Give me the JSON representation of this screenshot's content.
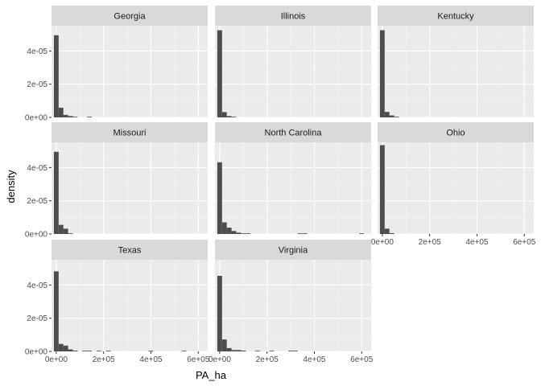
{
  "chart_data": {
    "type": "bar",
    "subtype": "faceted-histogram",
    "xlabel": "PA_ha",
    "ylabel": "density",
    "xlim": [
      -20000,
      640000
    ],
    "ylim": [
      0,
      5.52e-05
    ],
    "x_ticks": [
      0,
      200000,
      400000,
      600000
    ],
    "x_tick_labels": [
      "0e+00",
      "2e+05",
      "4e+05",
      "6e+05"
    ],
    "y_ticks": [
      0,
      2e-05,
      4e-05
    ],
    "y_tick_labels": [
      "0e+00",
      "2e-05",
      "4e-05"
    ],
    "bin_width": 20000,
    "grid": true,
    "panels": [
      {
        "name": "Georgia",
        "bins": [
          {
            "x": 0,
            "y": 4.95e-05
          },
          {
            "x": 20000,
            "y": 5.8e-06
          },
          {
            "x": 40000,
            "y": 1.5e-06
          },
          {
            "x": 60000,
            "y": 8e-07
          },
          {
            "x": 80000,
            "y": 3e-07
          },
          {
            "x": 140000,
            "y": 2e-07
          }
        ]
      },
      {
        "name": "Illinois",
        "bins": [
          {
            "x": 0,
            "y": 5.25e-05
          },
          {
            "x": 20000,
            "y": 3.2e-06
          },
          {
            "x": 40000,
            "y": 8e-07
          },
          {
            "x": 60000,
            "y": 2e-07
          }
        ]
      },
      {
        "name": "Kentucky",
        "bins": [
          {
            "x": 0,
            "y": 5.25e-05
          },
          {
            "x": 20000,
            "y": 3.3e-06
          },
          {
            "x": 40000,
            "y": 1.2e-06
          },
          {
            "x": 60000,
            "y": 3e-07
          }
        ]
      },
      {
        "name": "Missouri",
        "bins": [
          {
            "x": 0,
            "y": 4.95e-05
          },
          {
            "x": 20000,
            "y": 5.5e-06
          },
          {
            "x": 40000,
            "y": 3.2e-06
          },
          {
            "x": 60000,
            "y": 3e-07
          }
        ]
      },
      {
        "name": "North Carolina",
        "bins": [
          {
            "x": 0,
            "y": 4.32e-05
          },
          {
            "x": 20000,
            "y": 7e-06
          },
          {
            "x": 40000,
            "y": 3.8e-06
          },
          {
            "x": 60000,
            "y": 1.8e-06
          },
          {
            "x": 80000,
            "y": 8e-07
          },
          {
            "x": 100000,
            "y": 3e-07
          },
          {
            "x": 120000,
            "y": 2e-07
          },
          {
            "x": 340000,
            "y": 2e-07
          },
          {
            "x": 360000,
            "y": 2e-07
          },
          {
            "x": 600000,
            "y": 2e-07
          }
        ]
      },
      {
        "name": "Ohio",
        "bins": [
          {
            "x": 0,
            "y": 5.35e-05
          },
          {
            "x": 20000,
            "y": 3.2e-06
          },
          {
            "x": 40000,
            "y": 5e-07
          }
        ]
      },
      {
        "name": "Texas",
        "bins": [
          {
            "x": 0,
            "y": 4.82e-05
          },
          {
            "x": 20000,
            "y": 4.5e-06
          },
          {
            "x": 40000,
            "y": 3.5e-06
          },
          {
            "x": 60000,
            "y": 1.2e-06
          },
          {
            "x": 80000,
            "y": 5e-07
          },
          {
            "x": 120000,
            "y": 4e-07
          },
          {
            "x": 140000,
            "y": 3e-07
          },
          {
            "x": 180000,
            "y": 3e-07
          },
          {
            "x": 220000,
            "y": 2e-07
          },
          {
            "x": 400000,
            "y": 2e-07
          },
          {
            "x": 540000,
            "y": 2e-07
          }
        ]
      },
      {
        "name": "Virginia",
        "bins": [
          {
            "x": 0,
            "y": 4.55e-05
          },
          {
            "x": 20000,
            "y": 7.2e-06
          },
          {
            "x": 40000,
            "y": 2e-06
          },
          {
            "x": 60000,
            "y": 8e-07
          },
          {
            "x": 80000,
            "y": 8e-07
          },
          {
            "x": 100000,
            "y": 5e-07
          },
          {
            "x": 160000,
            "y": 2e-07
          },
          {
            "x": 220000,
            "y": 2e-07
          },
          {
            "x": 300000,
            "y": 2e-07
          },
          {
            "x": 320000,
            "y": 2e-07
          }
        ]
      }
    ]
  }
}
